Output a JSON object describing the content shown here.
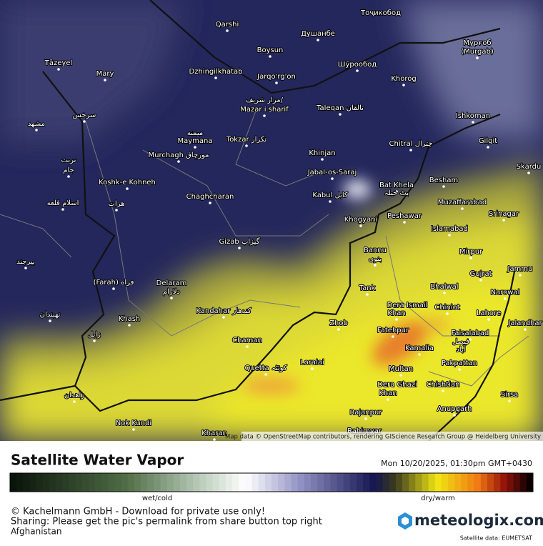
{
  "map": {
    "attribution": "Map data © OpenStreetMap contributors, rendering GIScience Research Group @ Heidelberg University",
    "labels": [
      "Qarshi",
      "Душанбе",
      "Тоҷикобод",
      "Boysun",
      "Мурғоб",
      "(Murgab)",
      "Tāzeyel",
      "Mary",
      "Dzhingilkhatab",
      "Jarqo'rg'on",
      "Шўрообод",
      "Khorog",
      "مزار شریف/",
      "Mazar i sharif",
      "Taleqan تالقان",
      "Ishkoman",
      "سرخس",
      "مشهد",
      "میمنه",
      "Maymana",
      "Tokzar تکزار",
      "Chitral چترال",
      "Gilgit",
      "Murchagh مورچاق",
      "Khinjan",
      "تربت",
      "جام",
      "Jabal-os-Saraj",
      "Skardu",
      "Bat Khela",
      "Besham",
      "Koshk-e Kohneh",
      "Kabul کابل",
      "بٹ خیلہ",
      "Chaghcharan",
      "Muzaffarabad",
      "اسلام قلعه",
      "هرات",
      "Srinagar",
      "Peshawar",
      "Khogyani",
      "Islamabad",
      "Gizab گیزاب",
      "Mirpur",
      "Bannu",
      "بنوں",
      "بیرجند",
      "Jammu",
      "Gujrat",
      "(Farah) فراه",
      "Delaram",
      "دلارام",
      "Tank",
      "Bhalwal",
      "Narowal",
      "Dera Ismail",
      "Khan",
      "Chiniot",
      "Lahore",
      "نهبندان",
      "Kandahar کندهار",
      "Khash",
      "Jalandhar",
      "Zhob",
      "Fatehpur",
      "Faisalabad",
      "فیصل",
      "آباد",
      "زابل",
      "Chaman",
      "Kamalia",
      "Loralai",
      "Quetta کوئٹہ",
      "Pakpattan",
      "Multan",
      "Dera Ghazi",
      "Khan",
      "Chishtian",
      "زاهدان",
      "Sirsa",
      "Anupgarh",
      "Rajanpur",
      "Nok Kundi",
      "Kharan",
      "Rahimyar"
    ]
  },
  "footer": {
    "title": "Satellite Water Vapor",
    "date": "Mon 10/20/2025, 01:30pm GMT+0430",
    "scale_low": "wet/cold",
    "scale_high": "dry/warm",
    "copyright": "© Kachelmann GmbH - Download for private use only!",
    "sharing": "Sharing: Please get the pic's permalink from share button top right",
    "region": "Afghanistan",
    "brand": "meteologix.com",
    "source": "Satellite data: EUMETSAT"
  }
}
